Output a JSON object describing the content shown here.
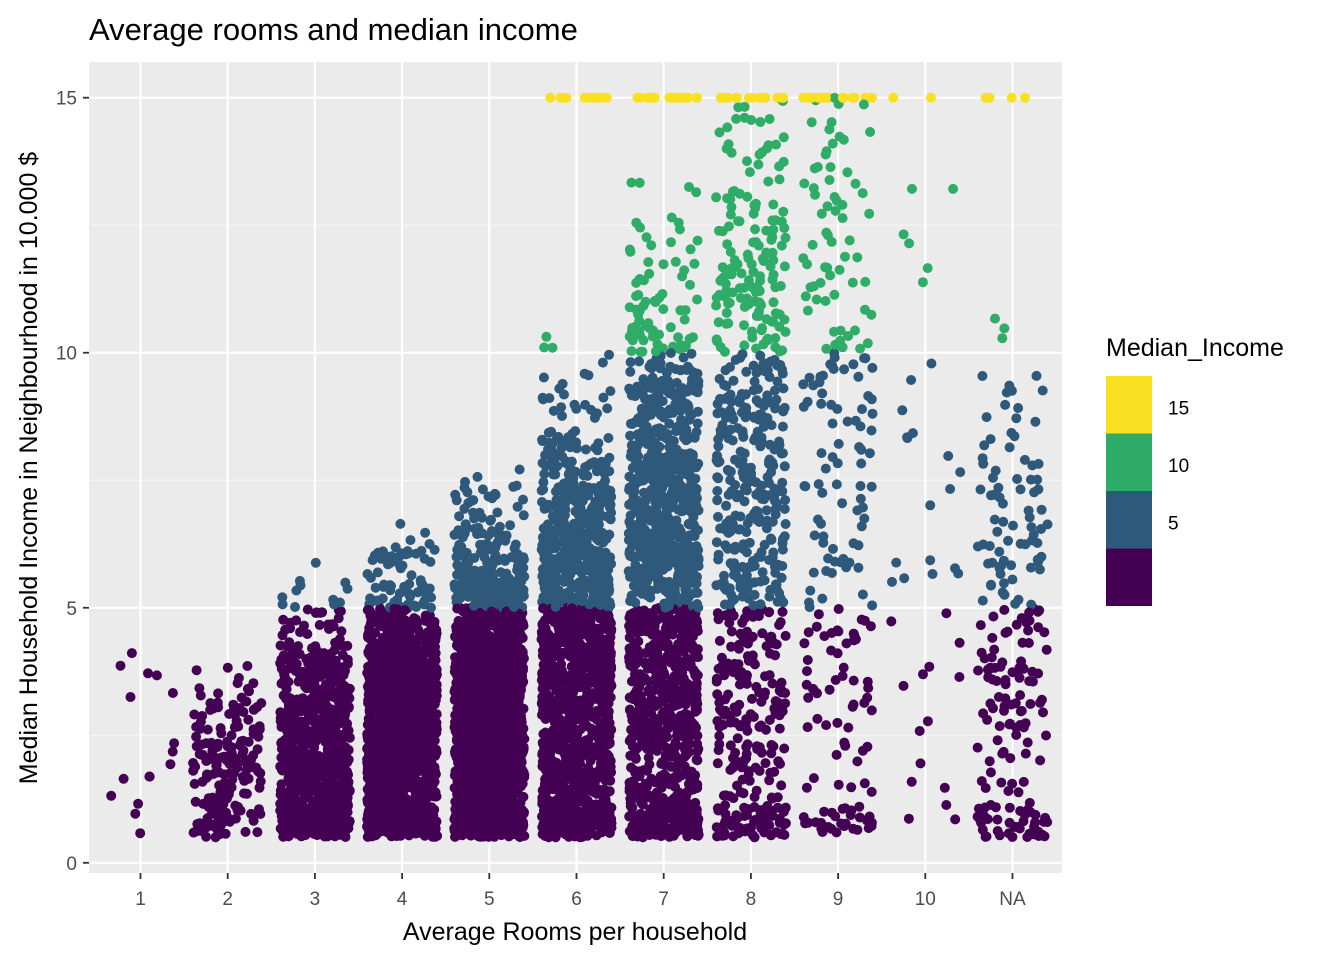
{
  "chart_data": {
    "type": "scatter",
    "title": "Average rooms and median income",
    "xlabel": "Average Rooms per household",
    "ylabel": "Median Household Income in Neighbourhood in 10.000 $",
    "categories": [
      "1",
      "2",
      "3",
      "4",
      "5",
      "6",
      "7",
      "8",
      "9",
      "10",
      "NA"
    ],
    "y_ticks": [
      0,
      5,
      10,
      15
    ],
    "ylim": [
      -0.2,
      15.7
    ],
    "grid": true,
    "jitter": true,
    "points_per_category": [
      16,
      180,
      800,
      1500,
      1700,
      1500,
      1400,
      700,
      250,
      40,
      220
    ],
    "color_bins": [
      {
        "min": 0,
        "max": 5,
        "color": "#440154"
      },
      {
        "min": 5,
        "max": 10,
        "color": "#2f597b"
      },
      {
        "min": 10,
        "max": 15,
        "color": "#2fad68"
      },
      {
        "min": 15,
        "max": 20,
        "color": "#f9e021"
      }
    ],
    "legend": {
      "title": "Median_Income",
      "placement": "right",
      "breaks": [
        5,
        10,
        15
      ],
      "colors": [
        "#f9e021",
        "#2fad68",
        "#2f597b",
        "#440154"
      ]
    }
  }
}
